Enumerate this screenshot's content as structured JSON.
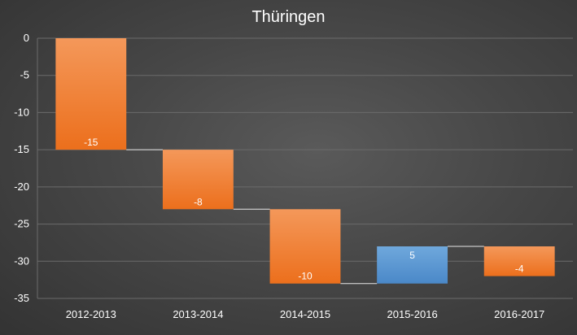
{
  "chart_data": {
    "type": "bar",
    "subtype": "waterfall",
    "title": "Thüringen",
    "categories": [
      "2012-2013",
      "2013-2014",
      "2014-2015",
      "2015-2016",
      "2016-2017"
    ],
    "values": [
      -15,
      -8,
      -10,
      5,
      -4
    ],
    "data_labels": [
      "-15",
      "-8",
      "-10",
      "5",
      "-4"
    ],
    "cumulative_start": 0,
    "ylim": [
      -35,
      0
    ],
    "y_ticks": [
      0,
      -5,
      -10,
      -15,
      -20,
      -25,
      -30,
      -35
    ],
    "grid": true,
    "legend": "none",
    "colors": {
      "decrease": "#f07f2c",
      "decrease_light": "#f4985a",
      "increase": "#5b9bd5",
      "increase_light": "#6fa8dc",
      "connector": "#e6e6e6",
      "grid": "#6b6b6b",
      "text": "#ffffff"
    }
  }
}
